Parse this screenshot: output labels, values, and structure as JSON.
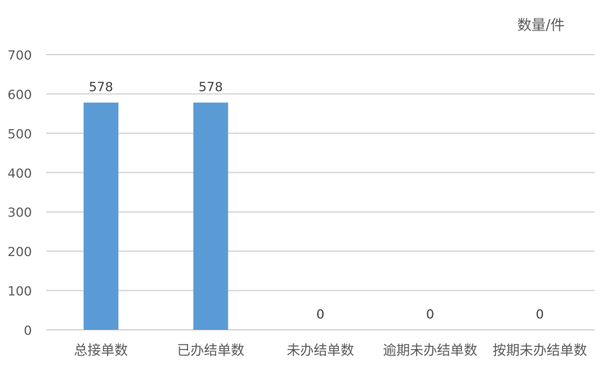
{
  "chart_data": {
    "type": "bar",
    "title": "",
    "ylabel": "数量/件",
    "xlabel": "",
    "categories": [
      "总接单数",
      "已办结单数",
      "未办结单数",
      "逾期未办结单数",
      "按期未办结单数"
    ],
    "values": [
      578,
      578,
      0,
      0,
      0
    ],
    "data_labels": [
      "578",
      "578",
      "0",
      "0",
      "0"
    ],
    "ylim": [
      0,
      700
    ],
    "yticks": [
      0,
      100,
      200,
      300,
      400,
      500,
      600,
      700
    ],
    "grid": true,
    "legend": "none",
    "bar_color": "#5B9BD5",
    "grid_color": "#D9D9D9",
    "text_color": "#595959"
  }
}
